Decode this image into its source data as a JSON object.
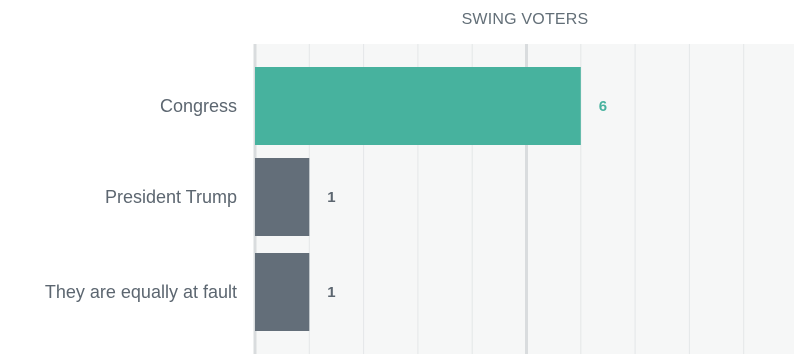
{
  "chart_data": {
    "type": "bar",
    "orientation": "horizontal",
    "title": "SWING VOTERS",
    "categories": [
      "Congress",
      "President Trump",
      "They are equally at fault"
    ],
    "values": [
      6,
      1,
      1
    ],
    "xlim": [
      0,
      10
    ],
    "grid": true,
    "colors": {
      "highlight": "#47b29e",
      "default": "#636e79",
      "highlight_label": "#47b29e",
      "default_label": "#5c6670"
    }
  }
}
